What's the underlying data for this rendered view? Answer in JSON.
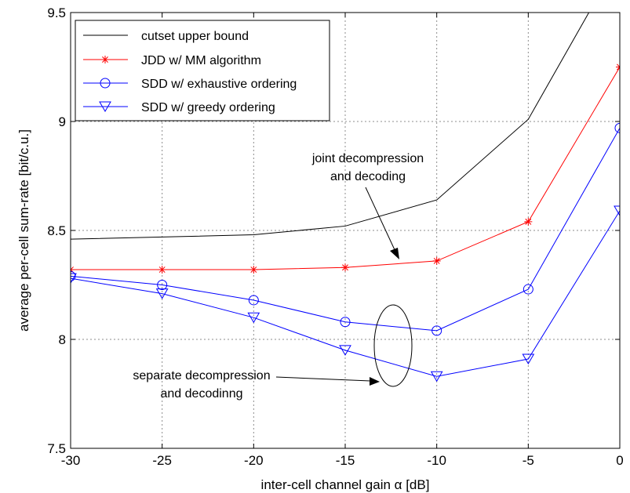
{
  "chart_data": {
    "type": "line",
    "title": "",
    "xlabel": "inter-cell channel gain α [dB]",
    "ylabel": "average per-cell sum-rate [bit/c.u.]",
    "xlim": [
      -30,
      0
    ],
    "ylim": [
      7.5,
      9.5
    ],
    "x": [
      -30,
      -25,
      -20,
      -15,
      -10,
      -5,
      0
    ],
    "xticks": [
      "-30",
      "-25",
      "-20",
      "-15",
      "-10",
      "-5",
      "0"
    ],
    "yticks": [
      "7.5",
      "8",
      "8.5",
      "9",
      "9.5"
    ],
    "grid": true,
    "legend_position": "top-left",
    "series": [
      {
        "name": "cutset upper bound",
        "color": "#000000",
        "marker": "none",
        "values": [
          8.46,
          8.47,
          8.48,
          8.52,
          8.64,
          9.01,
          9.75
        ]
      },
      {
        "name": "JDD w/ MM algorithm",
        "color": "#ff0000",
        "marker": "asterisk",
        "values": [
          8.32,
          8.32,
          8.32,
          8.33,
          8.36,
          8.54,
          9.25
        ]
      },
      {
        "name": "SDD w/ exhaustive ordering",
        "color": "#0000ff",
        "marker": "circle",
        "values": [
          8.29,
          8.25,
          8.18,
          8.08,
          8.04,
          8.23,
          8.97
        ]
      },
      {
        "name": "SDD w/ greedy ordering",
        "color": "#0000ff",
        "marker": "triangle-down",
        "values": [
          8.28,
          8.21,
          8.1,
          7.95,
          7.83,
          7.91,
          8.59
        ]
      }
    ],
    "annotations": [
      {
        "lines": [
          "joint decompression",
          "and decoding"
        ]
      },
      {
        "lines": [
          "separate decompression",
          "and decodinng"
        ]
      }
    ]
  }
}
